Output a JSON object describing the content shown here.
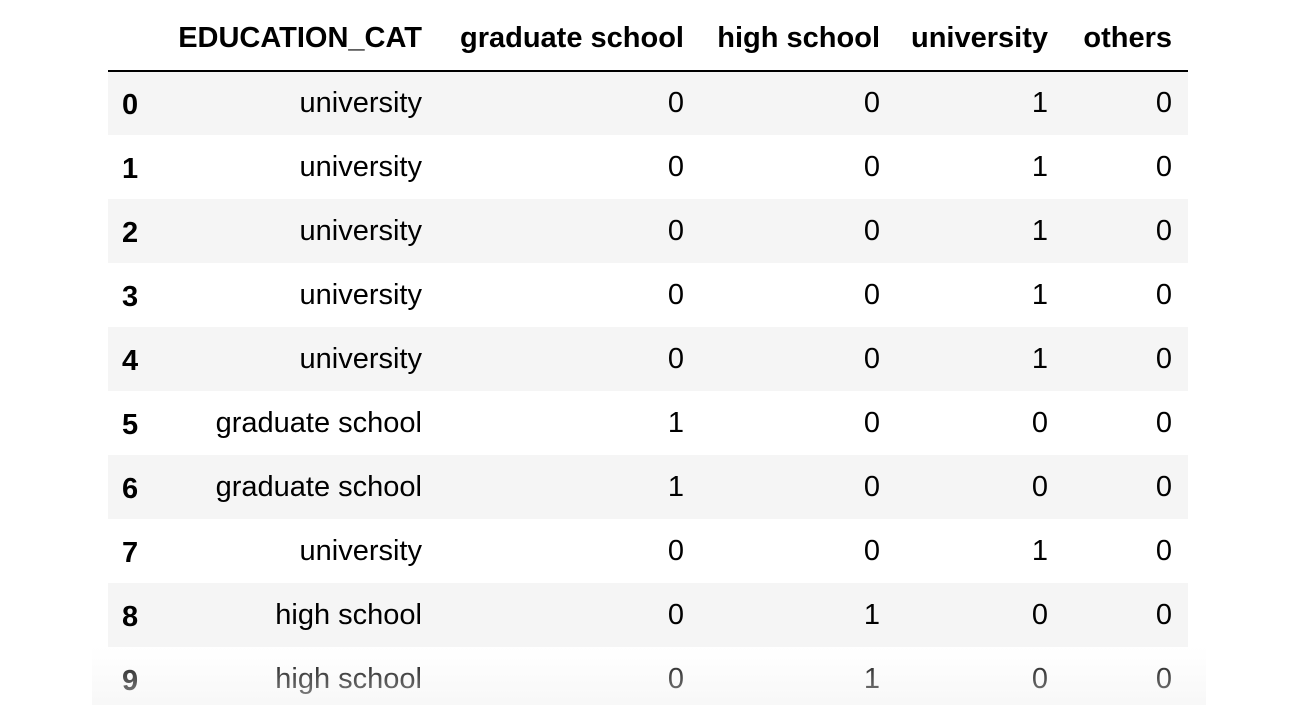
{
  "table": {
    "index_header": "",
    "columns": [
      "EDUCATION_CAT",
      "graduate school",
      "high school",
      "university",
      "others"
    ],
    "rows": [
      {
        "index": "0",
        "cells": [
          "university",
          "0",
          "0",
          "1",
          "0"
        ]
      },
      {
        "index": "1",
        "cells": [
          "university",
          "0",
          "0",
          "1",
          "0"
        ]
      },
      {
        "index": "2",
        "cells": [
          "university",
          "0",
          "0",
          "1",
          "0"
        ]
      },
      {
        "index": "3",
        "cells": [
          "university",
          "0",
          "0",
          "1",
          "0"
        ]
      },
      {
        "index": "4",
        "cells": [
          "university",
          "0",
          "0",
          "1",
          "0"
        ]
      },
      {
        "index": "5",
        "cells": [
          "graduate school",
          "1",
          "0",
          "0",
          "0"
        ]
      },
      {
        "index": "6",
        "cells": [
          "graduate school",
          "1",
          "0",
          "0",
          "0"
        ]
      },
      {
        "index": "7",
        "cells": [
          "university",
          "0",
          "0",
          "1",
          "0"
        ]
      },
      {
        "index": "8",
        "cells": [
          "high school",
          "0",
          "1",
          "0",
          "0"
        ]
      },
      {
        "index": "9",
        "cells": [
          "high school",
          "0",
          "1",
          "0",
          "0"
        ]
      }
    ]
  },
  "colors": {
    "stripe": "#f5f5f5",
    "header_rule": "#000000",
    "text": "#000000"
  }
}
